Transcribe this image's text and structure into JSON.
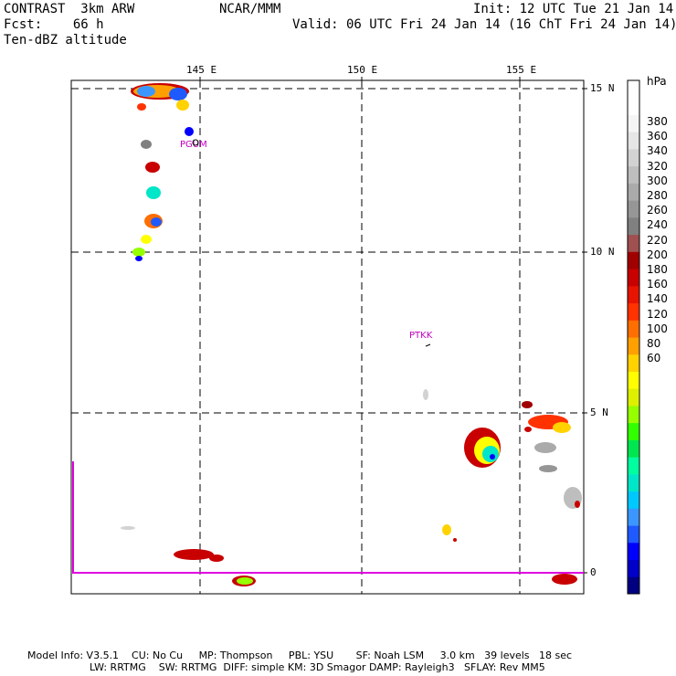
{
  "header": {
    "left": [
      "CONTRAST  3km ARW",
      "Fcst:    66 h",
      "Ten-dBZ altitude"
    ],
    "center": "NCAR/MMM",
    "init": "Init: 12 UTC Tue 21 Jan 14",
    "valid": "Valid: 06 UTC Fri 24 Jan 14 (16 ChT Fri 24 Jan 14)"
  },
  "map": {
    "lon_labels": [
      "145 E",
      "150 E",
      "155 E"
    ],
    "lat_labels": [
      "15 N",
      "10 N",
      "5 N",
      "0"
    ],
    "stations": [
      "PGUM",
      "PTKK"
    ],
    "grid": "dashed"
  },
  "colorbar": {
    "unit": "hPa",
    "labels": [
      "380",
      "360",
      "340",
      "320",
      "300",
      "280",
      "260",
      "240",
      "220",
      "200",
      "180",
      "160",
      "140",
      "120",
      "100",
      "80",
      "60"
    ],
    "colors": [
      "#000080",
      "#0000c8",
      "#0000ff",
      "#1e5aff",
      "#3c96ff",
      "#00c8ff",
      "#00e6c8",
      "#00ffa0",
      "#00e650",
      "#32ff00",
      "#96ff00",
      "#dcf000",
      "#ffff00",
      "#ffd200",
      "#ffa000",
      "#ff6e00",
      "#ff3200",
      "#e61400",
      "#c80000",
      "#a00000",
      "#a05050",
      "#808080",
      "#969696",
      "#aaaaaa",
      "#bebebe",
      "#d2d2d2",
      "#e6e6e6",
      "#f5f5f5",
      "#ffffff",
      "#ffffff"
    ]
  },
  "footer": {
    "line1": "Model Info: V3.5.1    CU: No Cu     MP: Thompson     PBL: YSU       SF: Noah LSM     3.0 km   39 levels   18 sec",
    "line2": "LW: RRTMG    SW: RRTMG  DIFF: simple KM: 3D Smagor DAMP: Rayleigh3   SFLAY: Rev MM5"
  }
}
